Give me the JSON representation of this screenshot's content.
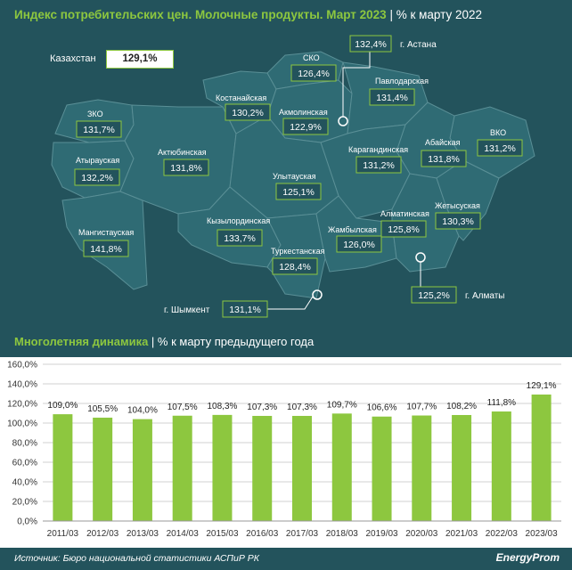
{
  "header": {
    "title_main": "Индекс потребительских цен. Молочные продукты. Март 2023",
    "title_sep": " | ",
    "title_sub": "% к марту 2022"
  },
  "kazakhstan": {
    "label": "Казахстан",
    "value": "129,1%"
  },
  "regions": [
    {
      "name": "ЗКО",
      "value": "131,7%"
    },
    {
      "name": "Атырауская",
      "value": "132,2%"
    },
    {
      "name": "Мангистауская",
      "value": "141,8%"
    },
    {
      "name": "Актюбинская",
      "value": "131,8%"
    },
    {
      "name": "Костанайская",
      "value": "130,2%"
    },
    {
      "name": "СКО",
      "value": "126,4%"
    },
    {
      "name": "Акмолинская",
      "value": "122,9%"
    },
    {
      "name": "Павлодарская",
      "value": "131,4%"
    },
    {
      "name": "ВКО",
      "value": "131,2%"
    },
    {
      "name": "Абайская",
      "value": "131,8%"
    },
    {
      "name": "Карагандинская",
      "value": "131,2%"
    },
    {
      "name": "Улытауская",
      "value": "125,1%"
    },
    {
      "name": "Кызылординская",
      "value": "133,7%"
    },
    {
      "name": "Туркестанская",
      "value": "128,4%"
    },
    {
      "name": "Жамбылская",
      "value": "126,0%"
    },
    {
      "name": "Алматинская",
      "value": "125,8%"
    },
    {
      "name": "Жетысуская",
      "value": "130,3%"
    }
  ],
  "cities": [
    {
      "name": "г. Астана",
      "value": "132,4%"
    },
    {
      "name": "г. Алматы",
      "value": "125,2%"
    },
    {
      "name": "г. Шымкент",
      "value": "131,1%"
    }
  ],
  "section2": {
    "title_main": "Многолетняя динамика",
    "title_sep": " | ",
    "title_sub": "% к марту предыдущего года"
  },
  "chart_data": {
    "type": "bar",
    "categories": [
      "2011/03",
      "2012/03",
      "2013/03",
      "2014/03",
      "2015/03",
      "2016/03",
      "2017/03",
      "2018/03",
      "2019/03",
      "2020/03",
      "2021/03",
      "2022/03",
      "2023/03"
    ],
    "values": [
      109.0,
      105.5,
      104.0,
      107.5,
      108.3,
      107.3,
      107.3,
      109.7,
      106.6,
      107.7,
      108.2,
      111.8,
      129.1
    ],
    "value_labels": [
      "109,0%",
      "105,5%",
      "104,0%",
      "107,5%",
      "108,3%",
      "107,3%",
      "107,3%",
      "109,7%",
      "106,6%",
      "107,7%",
      "108,2%",
      "111,8%",
      "129,1%"
    ],
    "ylim": [
      0,
      160
    ],
    "yticks": [
      0,
      20,
      40,
      60,
      80,
      100,
      120,
      140,
      160
    ],
    "ytick_labels": [
      "0,0%",
      "20,0%",
      "40,0%",
      "60,0%",
      "80,0%",
      "100,0%",
      "120,0%",
      "140,0%",
      "160,0%"
    ],
    "grid": true,
    "bar_color": "#8dc73f"
  },
  "footer": {
    "source": "Источник: Бюро национальной статистики АСПиР РК",
    "brand": "EnergyProm"
  },
  "colors": {
    "background": "#23535c",
    "accent": "#8dc73f",
    "map_fill": "#2f6b74",
    "map_border": "#5a8f96"
  }
}
